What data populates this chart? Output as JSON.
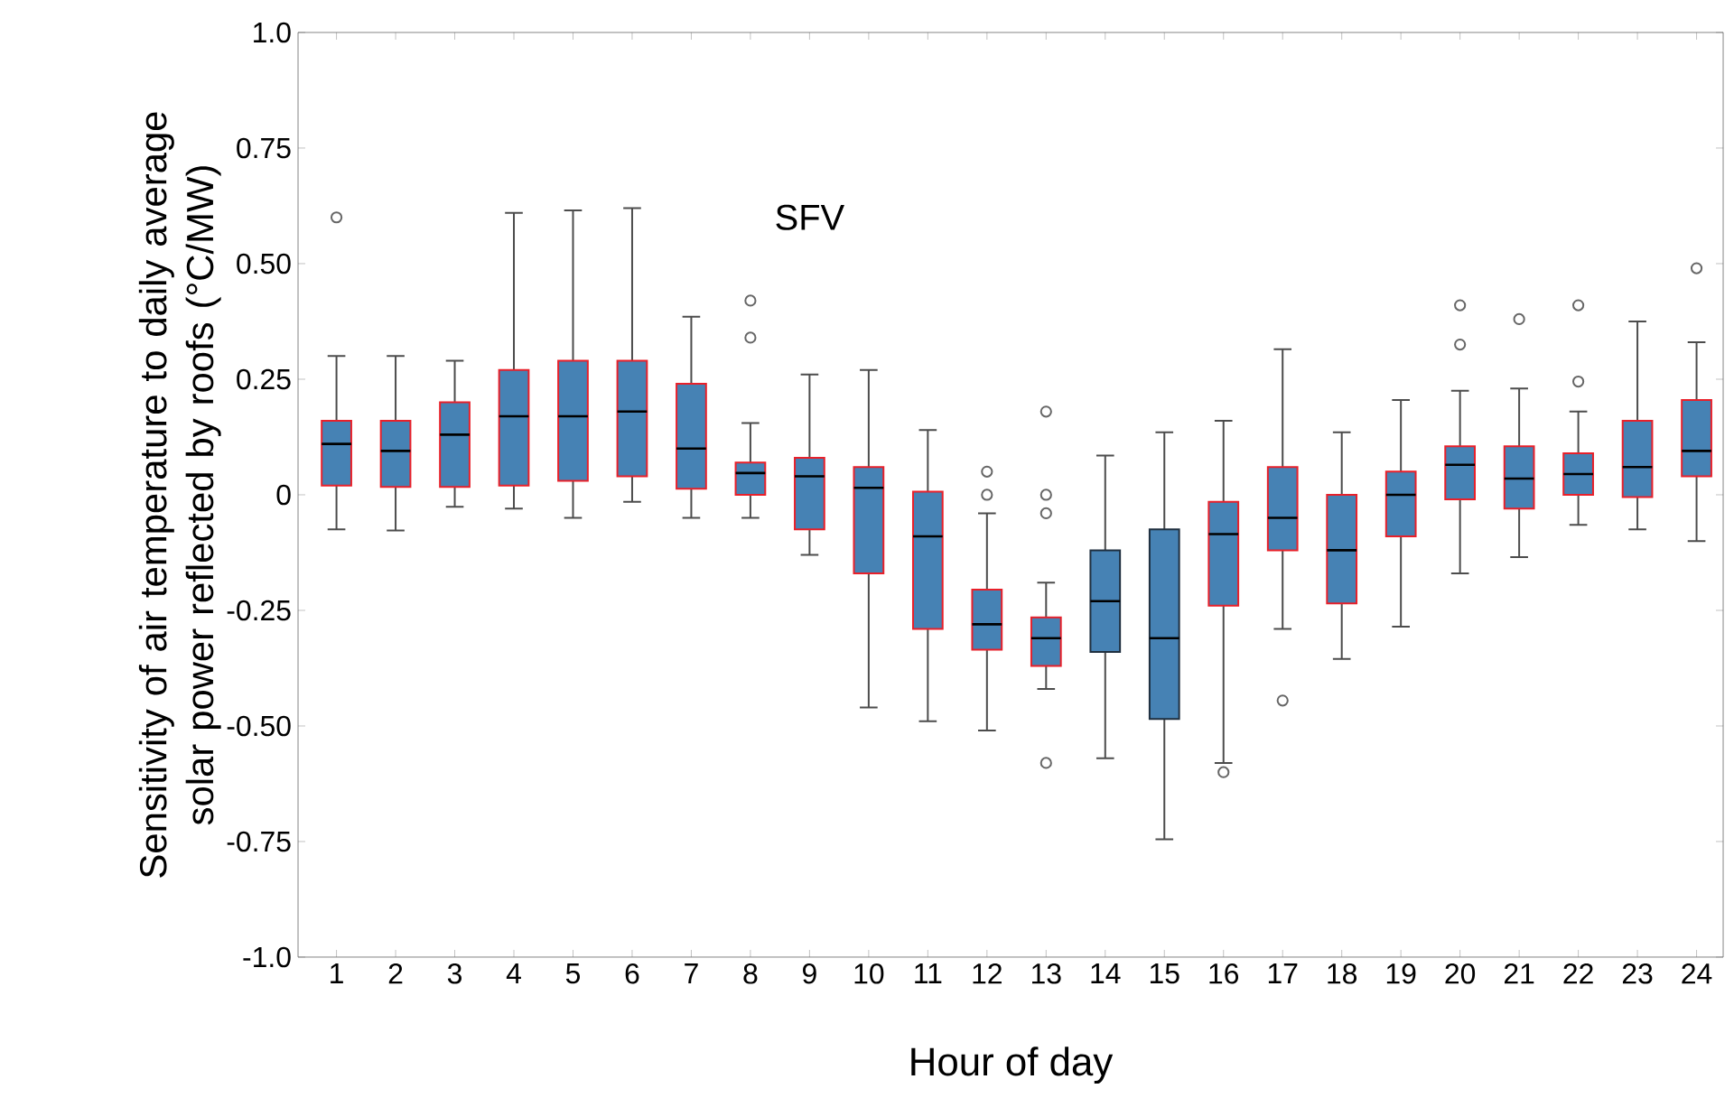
{
  "chart_data": {
    "type": "box",
    "title": "SFV",
    "xlabel": "Hour of day",
    "ylabel": "Sensitivity of air temperature to daily average solar power reflected by roofs (°C/MW)",
    "categories": [
      "1",
      "2",
      "3",
      "4",
      "5",
      "6",
      "7",
      "8",
      "9",
      "10",
      "11",
      "12",
      "13",
      "14",
      "15",
      "16",
      "17",
      "18",
      "19",
      "20",
      "21",
      "22",
      "23",
      "24"
    ],
    "ylim": [
      -1.0,
      1.0
    ],
    "yticks": [
      {
        "value": -1.0,
        "label": "-1.0"
      },
      -0.75,
      {
        "value": -0.5,
        "label": "-0.50"
      },
      -0.25,
      0,
      0.25,
      {
        "value": 0.5,
        "label": "0.50"
      },
      0.75,
      {
        "value": 1.0,
        "label": "1.0"
      }
    ],
    "series": [
      {
        "color": "#e8202a",
        "boxes": [
          {
            "low": -0.075,
            "q1": 0.02,
            "median": 0.11,
            "q3": 0.16,
            "high": 0.3,
            "outliers": [
              0.6
            ]
          },
          {
            "low": -0.077,
            "q1": 0.017,
            "median": 0.095,
            "q3": 0.16,
            "high": 0.3
          },
          {
            "low": -0.026,
            "q1": 0.017,
            "median": 0.13,
            "q3": 0.2,
            "high": 0.29
          },
          {
            "low": -0.03,
            "q1": 0.02,
            "median": 0.17,
            "q3": 0.27,
            "high": 0.61
          },
          {
            "low": -0.05,
            "q1": 0.03,
            "median": 0.17,
            "q3": 0.29,
            "high": 0.615
          },
          {
            "low": -0.015,
            "q1": 0.04,
            "median": 0.18,
            "q3": 0.29,
            "high": 0.62
          },
          {
            "low": -0.05,
            "q1": 0.013,
            "median": 0.1,
            "q3": 0.24,
            "high": 0.385
          },
          {
            "low": -0.05,
            "q1": 0.0,
            "median": 0.047,
            "q3": 0.07,
            "high": 0.155,
            "outliers": [
              0.42,
              0.34
            ]
          },
          {
            "low": -0.13,
            "q1": -0.075,
            "median": 0.04,
            "q3": 0.08,
            "high": 0.26
          },
          {
            "low": -0.46,
            "q1": -0.17,
            "median": 0.015,
            "q3": 0.06,
            "high": 0.27
          },
          {
            "low": -0.49,
            "q1": -0.29,
            "median": -0.09,
            "q3": 0.007,
            "high": 0.14
          },
          {
            "low": -0.51,
            "q1": -0.335,
            "median": -0.28,
            "q3": -0.205,
            "high": -0.04,
            "outliers": [
              0.05,
              0.0
            ]
          },
          {
            "low": -0.42,
            "q1": -0.37,
            "median": -0.31,
            "q3": -0.265,
            "high": -0.19,
            "outliers": [
              0.18,
              0.0,
              -0.04,
              -0.58
            ]
          },
          null,
          null,
          {
            "low": -0.58,
            "q1": -0.24,
            "median": -0.085,
            "q3": -0.015,
            "high": 0.16,
            "outliers": [
              -0.6
            ]
          },
          {
            "low": -0.29,
            "q1": -0.12,
            "median": -0.05,
            "q3": 0.06,
            "high": 0.315,
            "outliers": [
              -0.445
            ]
          },
          {
            "low": -0.355,
            "q1": -0.235,
            "median": -0.12,
            "q3": 0.0,
            "high": 0.135
          },
          {
            "low": -0.285,
            "q1": -0.09,
            "median": 0.0,
            "q3": 0.05,
            "high": 0.205
          },
          {
            "low": -0.17,
            "q1": -0.01,
            "median": 0.065,
            "q3": 0.105,
            "high": 0.225,
            "outliers": [
              0.41,
              0.325
            ]
          },
          {
            "low": -0.135,
            "q1": -0.03,
            "median": 0.035,
            "q3": 0.105,
            "high": 0.23,
            "outliers": [
              0.38
            ]
          },
          {
            "low": -0.065,
            "q1": 0.0,
            "median": 0.045,
            "q3": 0.09,
            "high": 0.18,
            "outliers": [
              0.41,
              0.245
            ]
          },
          {
            "low": -0.075,
            "q1": -0.005,
            "median": 0.06,
            "q3": 0.16,
            "high": 0.375
          },
          {
            "low": -0.1,
            "q1": 0.04,
            "median": 0.095,
            "q3": 0.205,
            "high": 0.33,
            "outliers": [
              0.49
            ]
          }
        ]
      },
      {
        "color": "#1f2f3f",
        "boxes": [
          null,
          null,
          null,
          null,
          null,
          null,
          null,
          null,
          null,
          null,
          null,
          null,
          null,
          {
            "low": -0.57,
            "q1": -0.34,
            "median": -0.23,
            "q3": -0.12,
            "high": 0.085
          },
          {
            "low": -0.745,
            "q1": -0.485,
            "median": -0.31,
            "q3": -0.075,
            "high": 0.135
          },
          null,
          null,
          null,
          null,
          null,
          null,
          null,
          null,
          null
        ]
      }
    ]
  }
}
